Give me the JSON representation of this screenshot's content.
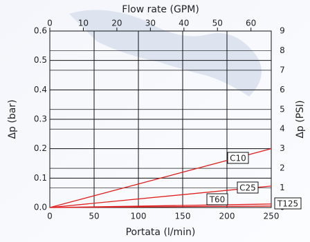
{
  "chart_data": {
    "type": "line",
    "x_label": "Portata (l/min)",
    "x2_label": "Flow rate (GPM)",
    "y_label": "Δp (bar)",
    "y2_label": "Δp (PSI)",
    "x": [
      0,
      250
    ],
    "xlim": [
      0,
      250
    ],
    "xticks": [
      0,
      50,
      100,
      150,
      200,
      250
    ],
    "x2lim": [
      0,
      66.05
    ],
    "x2ticks": [
      0,
      10,
      20,
      30,
      40,
      50,
      60
    ],
    "ylim": [
      0,
      0.6
    ],
    "yticks": [
      {
        "value": 0,
        "label": "0.0"
      },
      0.1,
      0.2,
      0.3,
      0.4,
      0.5,
      0.6
    ],
    "y2lim": [
      0,
      9
    ],
    "y2ticks": [
      0,
      1,
      2,
      3,
      4,
      5,
      6,
      7,
      8,
      9
    ],
    "grid": true,
    "series": [
      {
        "name": "C10",
        "color": "#e02020",
        "values": [
          0,
          0.2
        ]
      },
      {
        "name": "C25",
        "color": "#e02020",
        "values": [
          0,
          0.073
        ]
      },
      {
        "name": "T60",
        "color": "#e02020",
        "values": [
          0,
          0.012
        ]
      },
      {
        "name": "T125",
        "color": "#e02020",
        "values": [
          0,
          0.005
        ]
      }
    ]
  }
}
